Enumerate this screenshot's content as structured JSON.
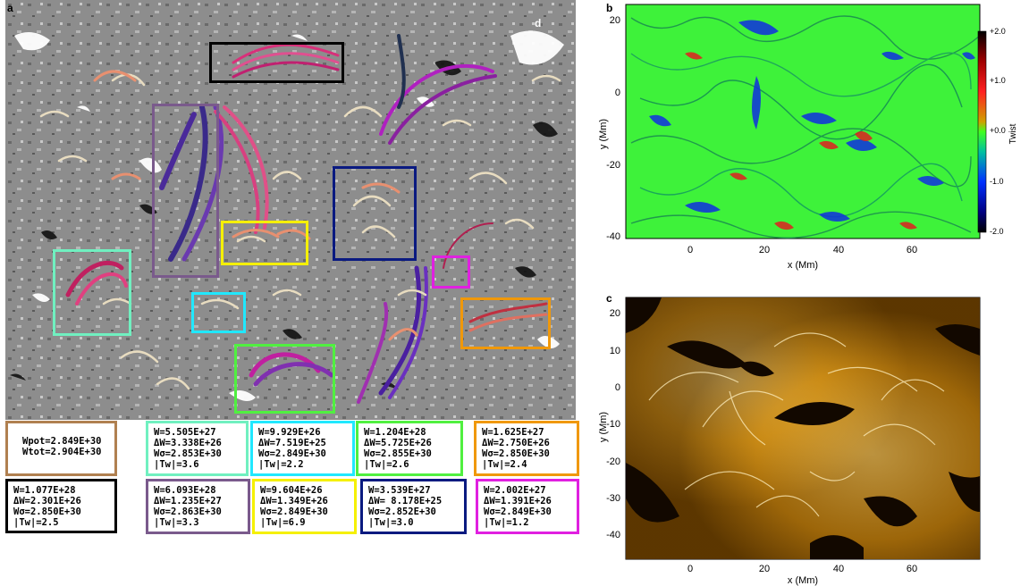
{
  "panel_labels": {
    "a": "a",
    "b": "b",
    "c": "c",
    "d": "d"
  },
  "colors": {
    "black": "#000000",
    "purple": "#7a5a8c",
    "yellow": "#f5f000",
    "navy": "#0a1a80",
    "cyan": "#20e8ff",
    "teal": "#70f0c0",
    "magenta": "#e020e0",
    "green": "#50f040",
    "orange": "#f0980a",
    "brown": "#b08050"
  },
  "info_boxes": [
    {
      "id": "brown",
      "color": "#b08050",
      "lines": [
        "Wpot=2.849E+30",
        "Wtot=2.904E+30"
      ]
    },
    {
      "id": "teal",
      "color": "#70f0c0",
      "lines": [
        "W=5.505E+27",
        "ΔW=3.338E+26",
        "Wσ=2.853E+30",
        "|Tw|=3.6"
      ]
    },
    {
      "id": "cyan",
      "color": "#20e8ff",
      "lines": [
        "W=9.929E+26",
        "ΔW=7.519E+25",
        "Wσ=2.849E+30",
        "|Tw|=2.2"
      ]
    },
    {
      "id": "green",
      "color": "#50f040",
      "lines": [
        "W=1.204E+28",
        "ΔW=5.725E+26",
        "Wσ=2.855E+30",
        "|Tw|=2.6"
      ]
    },
    {
      "id": "orange",
      "color": "#f0980a",
      "lines": [
        "W=1.625E+27",
        "ΔW=2.750E+26",
        "Wσ=2.850E+30",
        "|Tw|=2.4"
      ]
    },
    {
      "id": "black",
      "color": "#000000",
      "lines": [
        "W=1.077E+28",
        "ΔW=2.301E+26",
        "Wσ=2.850E+30",
        "|Tw|=2.5"
      ]
    },
    {
      "id": "purple",
      "color": "#7a5a8c",
      "lines": [
        "W=6.093E+28",
        "ΔW=1.235E+27",
        "Wσ=2.863E+30",
        "|Tw|=3.3"
      ]
    },
    {
      "id": "yellow",
      "color": "#f5f000",
      "lines": [
        "W=9.604E+26",
        "ΔW=1.349E+26",
        "Wσ=2.849E+30",
        "|Tw|=6.9"
      ]
    },
    {
      "id": "navy",
      "color": "#0a1a80",
      "lines": [
        "W=3.539E+27",
        "ΔW= 8.178E+25",
        "Wσ=2.852E+30",
        "|Tw|=3.0"
      ]
    },
    {
      "id": "magenta",
      "color": "#e020e0",
      "lines": [
        "W=2.002E+27",
        "ΔW=1.391E+26",
        "Wσ=2.849E+30",
        "|Tw|=1.2"
      ]
    }
  ],
  "panel_b": {
    "xlabel": "x (Mm)",
    "ylabel": "y (Mm)",
    "xticks": [
      "0",
      "20",
      "40",
      "60"
    ],
    "yticks": [
      "20",
      "0",
      "-20",
      "-40"
    ],
    "colorbar_label": "Twist",
    "colorbar_ticks": [
      "+2.0",
      "+1.0",
      "+0.0",
      "-1.0",
      "-2.0"
    ]
  },
  "panel_c": {
    "xlabel": "x (Mm)",
    "ylabel": "y (Mm)",
    "xticks": [
      "0",
      "20",
      "40",
      "60"
    ],
    "yticks": [
      "20",
      "10",
      "0",
      "-10",
      "-20",
      "-30",
      "-40"
    ]
  }
}
